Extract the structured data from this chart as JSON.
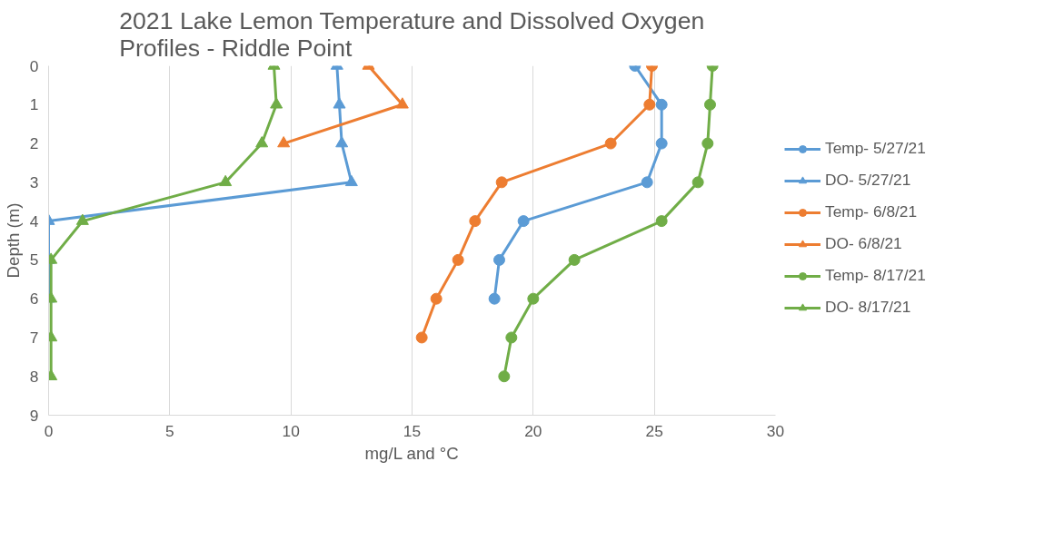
{
  "chart_data": {
    "type": "line",
    "title": "2021 Lake Lemon Temperature and Dissolved Oxygen Profiles - Riddle Point",
    "xlabel": "mg/L and °C",
    "ylabel": "Depth (m)",
    "xlim": [
      0,
      30
    ],
    "xticks": [
      0,
      5,
      10,
      15,
      20,
      25,
      30
    ],
    "ylim": [
      9,
      0
    ],
    "yticks": [
      0,
      1,
      2,
      3,
      4,
      5,
      6,
      7,
      8,
      9
    ],
    "grid": "x",
    "legend": "right",
    "series": [
      {
        "name": "Temp- 5/27/21",
        "color": "#5b9bd5",
        "marker": "circle",
        "x": [
          24.2,
          25.3,
          25.3,
          24.7,
          19.6,
          18.6,
          18.4
        ],
        "values": [
          0,
          1,
          2,
          3,
          4,
          5,
          6
        ]
      },
      {
        "name": "DO- 5/27/21",
        "color": "#5b9bd5",
        "marker": "triangle",
        "x": [
          11.9,
          12.0,
          12.1,
          12.5,
          0,
          0,
          0
        ],
        "values": [
          0,
          1,
          2,
          3,
          4,
          5,
          6
        ]
      },
      {
        "name": "Temp- 6/8/21",
        "color": "#ed7d31",
        "marker": "circle",
        "x": [
          24.9,
          24.8,
          23.2,
          18.7,
          17.6,
          16.9,
          16.0,
          15.4
        ],
        "values": [
          0,
          1,
          2,
          3,
          4,
          5,
          6,
          7
        ]
      },
      {
        "name": "DO- 6/8/21",
        "color": "#ed7d31",
        "marker": "triangle",
        "x": [
          13.2,
          14.6,
          9.7
        ],
        "values": [
          0,
          1,
          2
        ]
      },
      {
        "name": "Temp- 8/17/21",
        "color": "#70ad47",
        "marker": "circle",
        "x": [
          27.4,
          27.3,
          27.2,
          26.8,
          25.3,
          21.7,
          20.0,
          19.1,
          18.8
        ],
        "values": [
          0,
          1,
          2,
          3,
          4,
          5,
          6,
          7,
          8
        ]
      },
      {
        "name": "DO- 8/17/21",
        "color": "#70ad47",
        "marker": "triangle",
        "x": [
          9.3,
          9.4,
          8.8,
          7.3,
          1.4,
          0.1,
          0.1,
          0.1,
          0.1
        ],
        "values": [
          0,
          1,
          2,
          3,
          4,
          5,
          6,
          7,
          8
        ]
      }
    ]
  }
}
